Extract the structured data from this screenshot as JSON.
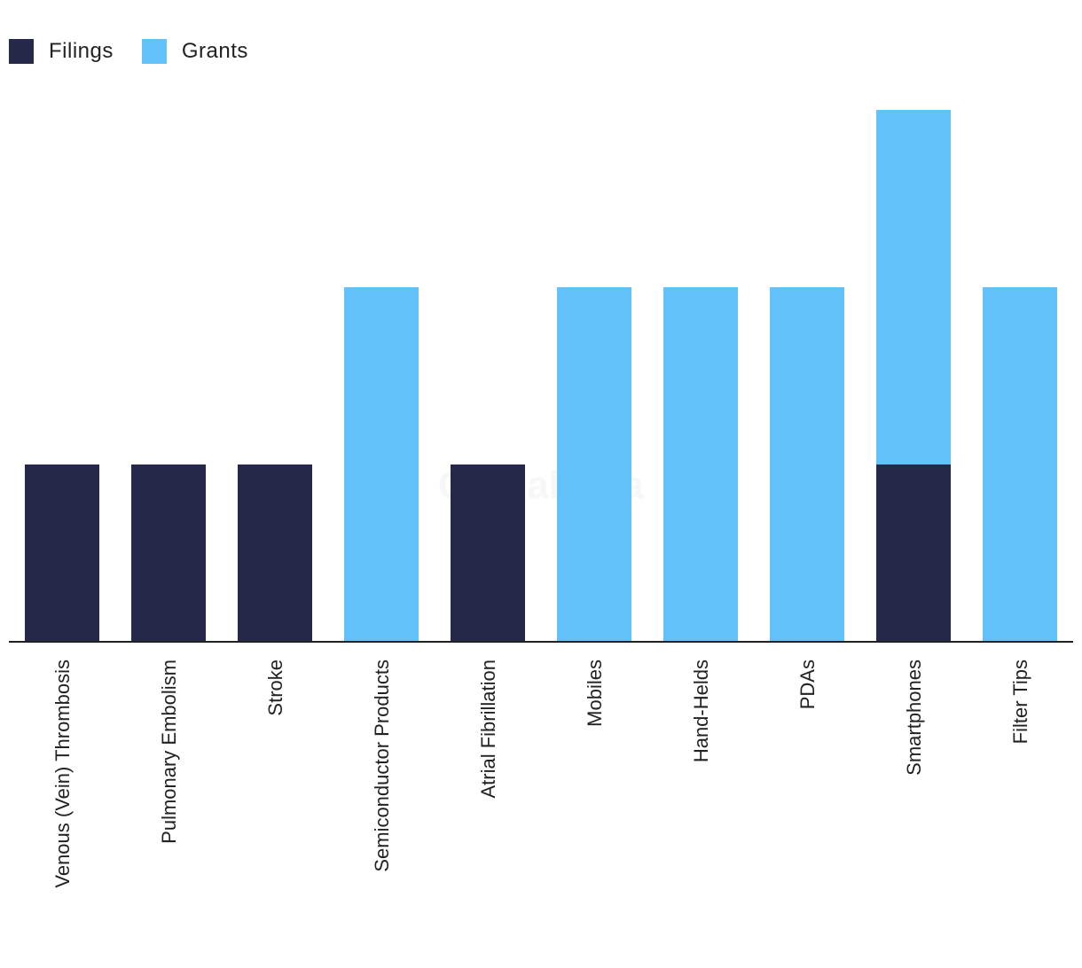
{
  "chart_data": {
    "type": "bar",
    "stacked": true,
    "categories": [
      "Venous (Vein) Thrombosis",
      "Pulmonary Embolism",
      "Stroke",
      "Semiconductor Products",
      "Atrial Fibrillation",
      "Mobiles",
      "Hand-Helds",
      "PDAs",
      "Smartphones",
      "Filter Tips"
    ],
    "series": [
      {
        "name": "Filings",
        "color": "#262849",
        "values": [
          1,
          1,
          1,
          0,
          1,
          0,
          0,
          0,
          1,
          0
        ]
      },
      {
        "name": "Grants",
        "color": "#62C1F9",
        "values": [
          0,
          0,
          0,
          2,
          0,
          2,
          2,
          2,
          2,
          2
        ]
      }
    ],
    "ylim": [
      0,
      3
    ],
    "legend_position": "top-left",
    "grid": false,
    "watermark": "GlobalData"
  }
}
